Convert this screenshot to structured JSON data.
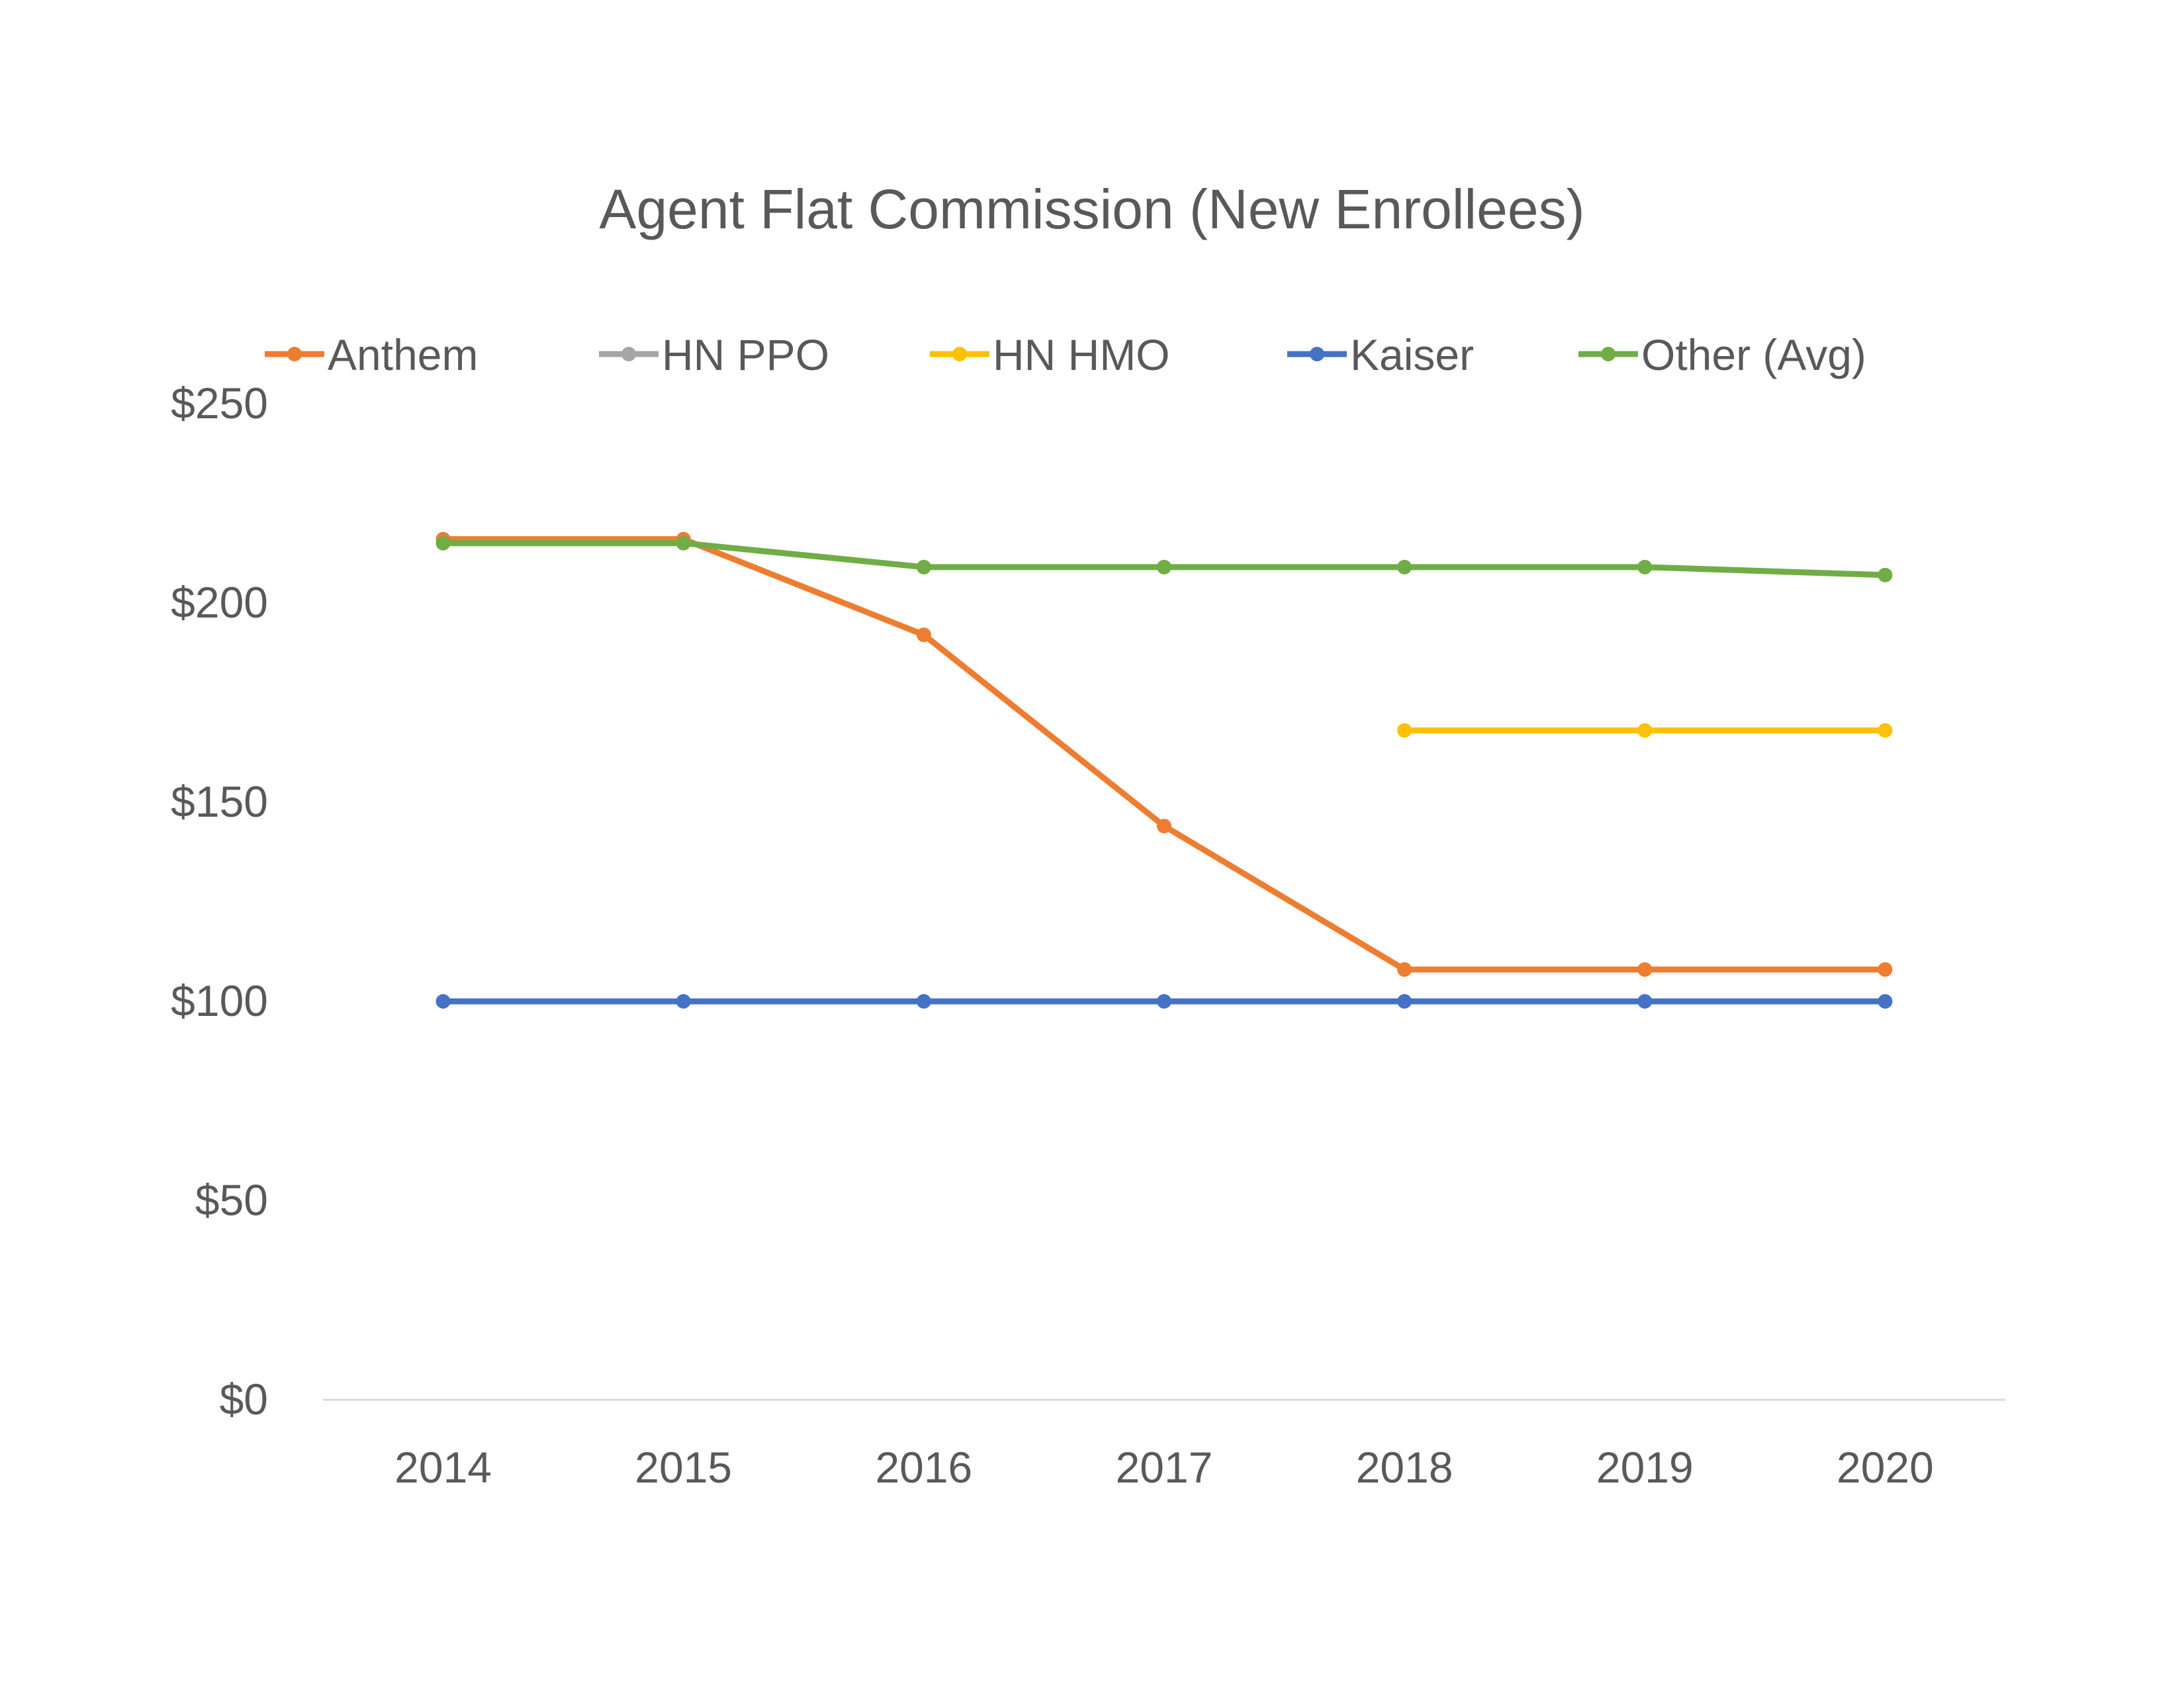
{
  "chart_data": {
    "type": "line",
    "title": "Agent Flat Commission (New Enrollees)",
    "xlabel": "",
    "ylabel": "",
    "categories": [
      "2014",
      "2015",
      "2016",
      "2017",
      "2018",
      "2019",
      "2020"
    ],
    "ylim": [
      0,
      250
    ],
    "yticks": [
      0,
      50,
      100,
      150,
      200,
      250
    ],
    "ytick_labels": [
      "$0",
      "$50",
      "$100",
      "$150",
      "$200",
      "$250"
    ],
    "grid": false,
    "legend_position": "top",
    "series": [
      {
        "name": "Anthem",
        "color": "#ED7D31",
        "values": [
          216,
          216,
          192,
          144,
          108,
          108,
          108
        ]
      },
      {
        "name": "HN PPO",
        "color": "#A5A5A5",
        "values": [
          null,
          null,
          null,
          null,
          null,
          null,
          null
        ]
      },
      {
        "name": "HN HMO",
        "color": "#FFC000",
        "values": [
          null,
          null,
          null,
          null,
          168,
          168,
          168
        ]
      },
      {
        "name": "Kaiser",
        "color": "#4472C4",
        "values": [
          100,
          100,
          100,
          100,
          100,
          100,
          100
        ]
      },
      {
        "name": "Other (Avg)",
        "color": "#70AD47",
        "values": [
          215,
          215,
          209,
          209,
          209,
          209,
          207
        ]
      }
    ]
  }
}
